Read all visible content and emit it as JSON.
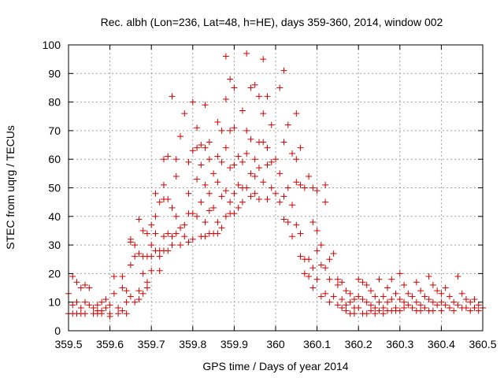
{
  "chart_data": {
    "type": "scatter",
    "title": "Rec. albh (Lon=236, Lat=48, h=HE), days 359-360, 2014, window 002",
    "xlabel": "GPS time / Days of year 2014",
    "ylabel": "STEC from uqrg / TECUs",
    "xlim": [
      359.5,
      360.5
    ],
    "ylim": [
      0,
      100
    ],
    "xticks": [
      "359.5",
      "359.6",
      "359.7",
      "359.8",
      "359.9",
      "360",
      "360.1",
      "360.2",
      "360.3",
      "360.4",
      "360.5"
    ],
    "yticks": [
      "0",
      "10",
      "20",
      "30",
      "40",
      "50",
      "60",
      "70",
      "80",
      "90",
      "100"
    ],
    "grid": true,
    "marker": "plus",
    "color": "#d00000",
    "series": [
      {
        "points": [
          [
            359.5,
            6
          ],
          [
            359.5,
            13
          ],
          [
            359.51,
            19
          ],
          [
            359.51,
            9
          ],
          [
            359.51,
            6
          ],
          [
            359.52,
            17
          ],
          [
            359.52,
            10
          ],
          [
            359.52,
            6
          ],
          [
            359.53,
            15
          ],
          [
            359.53,
            8
          ],
          [
            359.53,
            6
          ],
          [
            359.54,
            16
          ],
          [
            359.54,
            10
          ],
          [
            359.54,
            6
          ],
          [
            359.55,
            15
          ],
          [
            359.55,
            9
          ],
          [
            359.56,
            8
          ],
          [
            359.56,
            6
          ],
          [
            359.57,
            9
          ],
          [
            359.57,
            7
          ],
          [
            359.57,
            6
          ],
          [
            359.58,
            10
          ],
          [
            359.58,
            7
          ],
          [
            359.58,
            6
          ],
          [
            359.59,
            8
          ],
          [
            359.59,
            11
          ],
          [
            359.6,
            6
          ],
          [
            359.6,
            9
          ],
          [
            359.6,
            5
          ],
          [
            359.61,
            13
          ],
          [
            359.61,
            19
          ],
          [
            359.62,
            8
          ],
          [
            359.62,
            6
          ],
          [
            359.63,
            15
          ],
          [
            359.63,
            19
          ],
          [
            359.63,
            7
          ],
          [
            359.64,
            10
          ],
          [
            359.64,
            14
          ],
          [
            359.64,
            6
          ],
          [
            359.65,
            23
          ],
          [
            359.65,
            31
          ],
          [
            359.65,
            32
          ],
          [
            359.65,
            12
          ],
          [
            359.66,
            10
          ],
          [
            359.66,
            26
          ],
          [
            359.66,
            30
          ],
          [
            359.67,
            14
          ],
          [
            359.67,
            39
          ],
          [
            359.67,
            27
          ],
          [
            359.67,
            11
          ],
          [
            359.68,
            35
          ],
          [
            359.68,
            26
          ],
          [
            359.68,
            20
          ],
          [
            359.68,
            13
          ],
          [
            359.69,
            34
          ],
          [
            359.69,
            26
          ],
          [
            359.69,
            17
          ],
          [
            359.69,
            15
          ],
          [
            359.7,
            37
          ],
          [
            359.7,
            30
          ],
          [
            359.7,
            26
          ],
          [
            359.7,
            21
          ],
          [
            359.71,
            48
          ],
          [
            359.71,
            40
          ],
          [
            359.71,
            34
          ],
          [
            359.71,
            28
          ],
          [
            359.72,
            45
          ],
          [
            359.72,
            28
          ],
          [
            359.72,
            21
          ],
          [
            359.72,
            26
          ],
          [
            359.73,
            46
          ],
          [
            359.73,
            51
          ],
          [
            359.73,
            33
          ],
          [
            359.73,
            28
          ],
          [
            359.73,
            60
          ],
          [
            359.74,
            46
          ],
          [
            359.74,
            34
          ],
          [
            359.74,
            28
          ],
          [
            359.74,
            61
          ],
          [
            359.75,
            82
          ],
          [
            359.75,
            43
          ],
          [
            359.75,
            33
          ],
          [
            359.75,
            30
          ],
          [
            359.76,
            60
          ],
          [
            359.76,
            54
          ],
          [
            359.76,
            40
          ],
          [
            359.76,
            34
          ],
          [
            359.77,
            68
          ],
          [
            359.77,
            36
          ],
          [
            359.77,
            30
          ],
          [
            359.78,
            76
          ],
          [
            359.78,
            37
          ],
          [
            359.78,
            33
          ],
          [
            359.79,
            59
          ],
          [
            359.79,
            48
          ],
          [
            359.79,
            41
          ],
          [
            359.79,
            31
          ],
          [
            359.8,
            80
          ],
          [
            359.8,
            63
          ],
          [
            359.8,
            41
          ],
          [
            359.8,
            32
          ],
          [
            359.81,
            71
          ],
          [
            359.81,
            64
          ],
          [
            359.81,
            53
          ],
          [
            359.81,
            40
          ],
          [
            359.82,
            65
          ],
          [
            359.82,
            58
          ],
          [
            359.82,
            45
          ],
          [
            359.82,
            33
          ],
          [
            359.83,
            79
          ],
          [
            359.83,
            64
          ],
          [
            359.83,
            51
          ],
          [
            359.83,
            38
          ],
          [
            359.83,
            33
          ],
          [
            359.84,
            66
          ],
          [
            359.84,
            60
          ],
          [
            359.84,
            48
          ],
          [
            359.84,
            42
          ],
          [
            359.84,
            34
          ],
          [
            359.85,
            55
          ],
          [
            359.85,
            43
          ],
          [
            359.85,
            34
          ],
          [
            359.86,
            73
          ],
          [
            359.86,
            61
          ],
          [
            359.86,
            52
          ],
          [
            359.86,
            38
          ],
          [
            359.86,
            34
          ],
          [
            359.87,
            70
          ],
          [
            359.87,
            59
          ],
          [
            359.87,
            47
          ],
          [
            359.87,
            36
          ],
          [
            359.88,
            96
          ],
          [
            359.88,
            81
          ],
          [
            359.88,
            64
          ],
          [
            359.88,
            49
          ],
          [
            359.88,
            40
          ],
          [
            359.89,
            88
          ],
          [
            359.89,
            70
          ],
          [
            359.89,
            57
          ],
          [
            359.89,
            45
          ],
          [
            359.89,
            41
          ],
          [
            359.9,
            85
          ],
          [
            359.9,
            71
          ],
          [
            359.9,
            58
          ],
          [
            359.9,
            48
          ],
          [
            359.9,
            41
          ],
          [
            359.91,
            61
          ],
          [
            359.91,
            51
          ],
          [
            359.91,
            43
          ],
          [
            359.92,
            77
          ],
          [
            359.92,
            59
          ],
          [
            359.92,
            50
          ],
          [
            359.92,
            45
          ],
          [
            359.93,
            97
          ],
          [
            359.93,
            70
          ],
          [
            359.93,
            62
          ],
          [
            359.93,
            50
          ],
          [
            359.94,
            85
          ],
          [
            359.94,
            67
          ],
          [
            359.94,
            55
          ],
          [
            359.94,
            47
          ],
          [
            359.95,
            86
          ],
          [
            359.95,
            60
          ],
          [
            359.95,
            54
          ],
          [
            359.95,
            48
          ],
          [
            359.96,
            82
          ],
          [
            359.96,
            66
          ],
          [
            359.96,
            57
          ],
          [
            359.96,
            46
          ],
          [
            359.97,
            95
          ],
          [
            359.97,
            76
          ],
          [
            359.97,
            66
          ],
          [
            359.97,
            52
          ],
          [
            359.98,
            82
          ],
          [
            359.98,
            64
          ],
          [
            359.98,
            58
          ],
          [
            359.98,
            46
          ],
          [
            359.99,
            72
          ],
          [
            359.99,
            59
          ],
          [
            359.99,
            50
          ],
          [
            360.0,
            60
          ],
          [
            360.0,
            48
          ],
          [
            360.01,
            85
          ],
          [
            360.01,
            55
          ],
          [
            360.01,
            45
          ],
          [
            360.02,
            91
          ],
          [
            360.02,
            66
          ],
          [
            360.02,
            47
          ],
          [
            360.02,
            39
          ],
          [
            360.03,
            72
          ],
          [
            360.03,
            50
          ],
          [
            360.03,
            38
          ],
          [
            360.04,
            62
          ],
          [
            360.04,
            44
          ],
          [
            360.04,
            33
          ],
          [
            360.05,
            76
          ],
          [
            360.05,
            60
          ],
          [
            360.05,
            52
          ],
          [
            360.05,
            37
          ],
          [
            360.06,
            64
          ],
          [
            360.06,
            51
          ],
          [
            360.06,
            34
          ],
          [
            360.06,
            26
          ],
          [
            360.07,
            50
          ],
          [
            360.07,
            25
          ],
          [
            360.07,
            20
          ],
          [
            360.08,
            54
          ],
          [
            360.08,
            25
          ],
          [
            360.08,
            19
          ],
          [
            360.09,
            50
          ],
          [
            360.09,
            38
          ],
          [
            360.09,
            22
          ],
          [
            360.09,
            15
          ],
          [
            360.1,
            49
          ],
          [
            360.1,
            35
          ],
          [
            360.1,
            28
          ],
          [
            360.1,
            18
          ],
          [
            360.11,
            30
          ],
          [
            360.11,
            23
          ],
          [
            360.11,
            12
          ],
          [
            360.12,
            51
          ],
          [
            360.12,
            45
          ],
          [
            360.12,
            22
          ],
          [
            360.12,
            13
          ],
          [
            360.13,
            25
          ],
          [
            360.13,
            18
          ],
          [
            360.13,
            10
          ],
          [
            360.14,
            27
          ],
          [
            360.14,
            12
          ],
          [
            360.15,
            18
          ],
          [
            360.15,
            16
          ],
          [
            360.15,
            9
          ],
          [
            360.16,
            17
          ],
          [
            360.16,
            11
          ],
          [
            360.16,
            8
          ],
          [
            360.17,
            14
          ],
          [
            360.17,
            9
          ],
          [
            360.17,
            7
          ],
          [
            360.18,
            13
          ],
          [
            360.18,
            10
          ],
          [
            360.18,
            6
          ],
          [
            360.19,
            11
          ],
          [
            360.19,
            8
          ],
          [
            360.19,
            6
          ],
          [
            360.2,
            18
          ],
          [
            360.2,
            12
          ],
          [
            360.2,
            8
          ],
          [
            360.21,
            17
          ],
          [
            360.21,
            11
          ],
          [
            360.21,
            6
          ],
          [
            360.22,
            16
          ],
          [
            360.22,
            10
          ],
          [
            360.22,
            6
          ],
          [
            360.23,
            14
          ],
          [
            360.23,
            9
          ],
          [
            360.23,
            7
          ],
          [
            360.24,
            12
          ],
          [
            360.24,
            8
          ],
          [
            360.24,
            6
          ],
          [
            360.25,
            18
          ],
          [
            360.25,
            10
          ],
          [
            360.25,
            7
          ],
          [
            360.26,
            12
          ],
          [
            360.26,
            8
          ],
          [
            360.26,
            6
          ],
          [
            360.27,
            15
          ],
          [
            360.27,
            10
          ],
          [
            360.27,
            7
          ],
          [
            360.28,
            18
          ],
          [
            360.28,
            11
          ],
          [
            360.28,
            7
          ],
          [
            360.29,
            13
          ],
          [
            360.29,
            8
          ],
          [
            360.29,
            7
          ],
          [
            360.3,
            20
          ],
          [
            360.3,
            11
          ],
          [
            360.3,
            7
          ],
          [
            360.31,
            16
          ],
          [
            360.31,
            10
          ],
          [
            360.31,
            8
          ],
          [
            360.32,
            13
          ],
          [
            360.32,
            9
          ],
          [
            360.33,
            12
          ],
          [
            360.33,
            8
          ],
          [
            360.34,
            17
          ],
          [
            360.34,
            10
          ],
          [
            360.34,
            7
          ],
          [
            360.35,
            14
          ],
          [
            360.35,
            9
          ],
          [
            360.35,
            7
          ],
          [
            360.36,
            12
          ],
          [
            360.36,
            8
          ],
          [
            360.37,
            19
          ],
          [
            360.37,
            11
          ],
          [
            360.37,
            7
          ],
          [
            360.38,
            16
          ],
          [
            360.38,
            10
          ],
          [
            360.38,
            7
          ],
          [
            360.39,
            14
          ],
          [
            360.39,
            9
          ],
          [
            360.4,
            13
          ],
          [
            360.4,
            10
          ],
          [
            360.4,
            7
          ],
          [
            360.41,
            15
          ],
          [
            360.41,
            9
          ],
          [
            360.42,
            12
          ],
          [
            360.42,
            8
          ],
          [
            360.43,
            10
          ],
          [
            360.43,
            7
          ],
          [
            360.44,
            19
          ],
          [
            360.44,
            9
          ],
          [
            360.45,
            13
          ],
          [
            360.45,
            8
          ],
          [
            360.46,
            11
          ],
          [
            360.46,
            8
          ],
          [
            360.47,
            10
          ],
          [
            360.47,
            7
          ],
          [
            360.48,
            11
          ],
          [
            360.48,
            8
          ],
          [
            360.49,
            9
          ],
          [
            360.49,
            7
          ],
          [
            360.5,
            8
          ]
        ]
      }
    ]
  }
}
